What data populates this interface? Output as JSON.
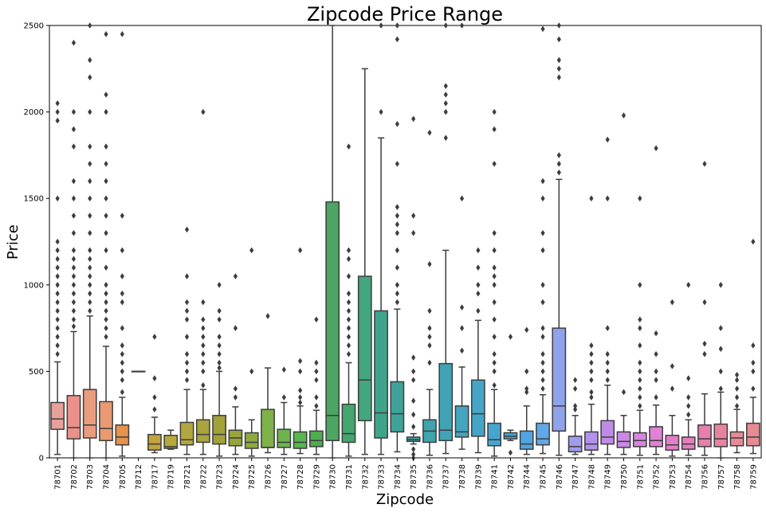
{
  "chart_data": {
    "type": "box",
    "title": "Zipcode Price Range",
    "xlabel": "Zipcode",
    "ylabel": "Price",
    "ylim": [
      0,
      2500
    ],
    "yticks": [
      0,
      500,
      1000,
      1500,
      2000,
      2500
    ],
    "grid": false,
    "legend": "none",
    "categories": [
      "78701",
      "78702",
      "78703",
      "78704",
      "78705",
      "78712",
      "78717",
      "78719",
      "78721",
      "78722",
      "78723",
      "78724",
      "78725",
      "78726",
      "78727",
      "78728",
      "78729",
      "78730",
      "78731",
      "78732",
      "78733",
      "78734",
      "78735",
      "78736",
      "78737",
      "78738",
      "78739",
      "78741",
      "78742",
      "78744",
      "78745",
      "78746",
      "78747",
      "78748",
      "78749",
      "78750",
      "78751",
      "78752",
      "78753",
      "78754",
      "78756",
      "78757",
      "78758",
      "78759"
    ],
    "colors": [
      "#e8a09a",
      "#eb908a",
      "#e99c7e",
      "#e99a72",
      "#e5924a",
      "#c9a22c",
      "#c2a33c",
      "#b9a83c",
      "#b3a63f",
      "#a9a43b",
      "#a2a23b",
      "#98a53b",
      "#8faa41",
      "#7fb14a",
      "#6db44d",
      "#58b64f",
      "#4cae4e",
      "#4ca562",
      "#45a56e",
      "#44a67e",
      "#3fa48c",
      "#3fa299",
      "#3ea4a5",
      "#3fa4ae",
      "#40a4b6",
      "#43a5be",
      "#44a5c6",
      "#46a5d0",
      "#4aa3d9",
      "#52a4e3",
      "#60a8e8",
      "#8fa3ea",
      "#a19cec",
      "#b393ec",
      "#c28ae8",
      "#cd88e6",
      "#d785e0",
      "#e080d6",
      "#e47dc9",
      "#e67ebd",
      "#e57fae",
      "#e8839f",
      "#e78c96",
      "#e68b91"
    ],
    "boxes": [
      {
        "q1": 165,
        "median": 225,
        "q3": 320,
        "whislo": 20,
        "whishi": 555,
        "fliers": [
          600,
          650,
          700,
          750,
          800,
          850,
          900,
          950,
          1000,
          1050,
          1100,
          1150,
          1200,
          1250,
          1500,
          1950,
          2000,
          2050
        ]
      },
      {
        "q1": 110,
        "median": 175,
        "q3": 360,
        "whislo": 0,
        "whishi": 730,
        "fliers": [
          760,
          800,
          850,
          900,
          950,
          1000,
          1050,
          1100,
          1150,
          1200,
          1300,
          1400,
          1500,
          1600,
          1800,
          1900,
          2000,
          2400
        ]
      },
      {
        "q1": 115,
        "median": 190,
        "q3": 395,
        "whislo": 0,
        "whishi": 820,
        "fliers": [
          850,
          900,
          950,
          1000,
          1050,
          1100,
          1150,
          1200,
          1300,
          1400,
          1500,
          1600,
          1700,
          1800,
          2000,
          2200,
          2300,
          2500
        ]
      },
      {
        "q1": 100,
        "median": 170,
        "q3": 325,
        "whislo": 0,
        "whishi": 645,
        "fliers": [
          700,
          750,
          800,
          850,
          900,
          950,
          1000,
          1100,
          1200,
          1300,
          1400,
          1500,
          1600,
          1700,
          1800,
          2000,
          2100,
          2450
        ]
      },
      {
        "q1": 75,
        "median": 120,
        "q3": 190,
        "whislo": 10,
        "whishi": 350,
        "fliers": [
          380,
          450,
          500,
          550,
          600,
          650,
          750,
          900,
          950,
          1050,
          1200,
          1400,
          2450
        ]
      },
      {
        "q1": 500,
        "median": 500,
        "q3": 500,
        "whislo": 500,
        "whishi": 500,
        "fliers": []
      },
      {
        "q1": 45,
        "median": 80,
        "q3": 135,
        "whislo": 30,
        "whishi": 235,
        "fliers": [
          280,
          350,
          460,
          700
        ]
      },
      {
        "q1": 55,
        "median": 65,
        "q3": 130,
        "whislo": 50,
        "whishi": 160,
        "fliers": []
      },
      {
        "q1": 75,
        "median": 105,
        "q3": 205,
        "whislo": 20,
        "whishi": 395,
        "fliers": [
          450,
          500,
          550,
          600,
          700,
          800,
          850,
          900,
          1050,
          1320
        ]
      },
      {
        "q1": 90,
        "median": 135,
        "q3": 220,
        "whislo": 20,
        "whishi": 395,
        "fliers": [
          420,
          500,
          550,
          600,
          650,
          700,
          750,
          800,
          900,
          2000
        ]
      },
      {
        "q1": 80,
        "median": 135,
        "q3": 245,
        "whislo": 10,
        "whishi": 500,
        "fliers": [
          520,
          550,
          600,
          650,
          700,
          800,
          850,
          1000
        ]
      },
      {
        "q1": 70,
        "median": 115,
        "q3": 160,
        "whislo": 20,
        "whishi": 295,
        "fliers": [
          350,
          400,
          750,
          1050
        ]
      },
      {
        "q1": 55,
        "median": 90,
        "q3": 145,
        "whislo": 10,
        "whishi": 220,
        "fliers": [
          500,
          1200
        ]
      },
      {
        "q1": 60,
        "median": 60,
        "q3": 280,
        "whislo": 30,
        "whishi": 520,
        "fliers": [
          820
        ]
      },
      {
        "q1": 60,
        "median": 90,
        "q3": 165,
        "whislo": 20,
        "whishi": 320,
        "fliers": [
          350,
          510
        ]
      },
      {
        "q1": 55,
        "median": 90,
        "q3": 150,
        "whislo": 25,
        "whishi": 300,
        "fliers": [
          320,
          350,
          390,
          500,
          560,
          1200
        ]
      },
      {
        "q1": 65,
        "median": 100,
        "q3": 155,
        "whislo": 20,
        "whishi": 275,
        "fliers": [
          300,
          350,
          450,
          500,
          550,
          800
        ]
      },
      {
        "q1": 100,
        "median": 245,
        "q3": 1480,
        "whislo": 0,
        "whishi": 2500,
        "fliers": []
      },
      {
        "q1": 90,
        "median": 140,
        "q3": 310,
        "whislo": 10,
        "whishi": 550,
        "fliers": [
          600,
          650,
          700,
          750,
          800,
          850,
          900,
          950,
          1050,
          1150,
          1200,
          1800
        ]
      },
      {
        "q1": 215,
        "median": 450,
        "q3": 1050,
        "whislo": 20,
        "whishi": 2250,
        "fliers": []
      },
      {
        "q1": 115,
        "median": 260,
        "q3": 850,
        "whislo": 20,
        "whishi": 1850,
        "fliers": [
          2000,
          2500
        ]
      },
      {
        "q1": 150,
        "median": 255,
        "q3": 440,
        "whislo": 35,
        "whishi": 860,
        "fliers": [
          900,
          950,
          1000,
          1100,
          1200,
          1300,
          1350,
          1400,
          1450,
          1700,
          1930,
          2420,
          2500
        ]
      },
      {
        "q1": 95,
        "median": 105,
        "q3": 120,
        "whislo": 80,
        "whishi": 140,
        "fliers": [
          0,
          20,
          50,
          180,
          250,
          330,
          450,
          500,
          580,
          1300,
          1400,
          1960
        ]
      },
      {
        "q1": 90,
        "median": 155,
        "q3": 220,
        "whislo": 15,
        "whishi": 395,
        "fliers": [
          550,
          650,
          700,
          750,
          850,
          1120,
          1880
        ]
      },
      {
        "q1": 100,
        "median": 160,
        "q3": 545,
        "whislo": 25,
        "whishi": 1200,
        "fliers": [
          1850,
          2000,
          2050,
          2100,
          2150,
          2500
        ]
      },
      {
        "q1": 120,
        "median": 150,
        "q3": 300,
        "whislo": 50,
        "whishi": 525,
        "fliers": [
          620,
          750,
          870,
          1500,
          2500
        ]
      },
      {
        "q1": 125,
        "median": 255,
        "q3": 450,
        "whislo": 30,
        "whishi": 795,
        "fliers": [
          850,
          950,
          1000,
          1100,
          1200
        ]
      },
      {
        "q1": 70,
        "median": 105,
        "q3": 200,
        "whislo": 10,
        "whishi": 395,
        "fliers": [
          420,
          500,
          550,
          600,
          700,
          800,
          900,
          1000,
          1050,
          1100,
          1200,
          1300,
          1700,
          1900,
          2000
        ]
      },
      {
        "q1": 110,
        "median": 125,
        "q3": 145,
        "whislo": 100,
        "whishi": 160,
        "fliers": [
          30,
          700
        ]
      },
      {
        "q1": 50,
        "median": 80,
        "q3": 155,
        "whislo": 20,
        "whishi": 300,
        "fliers": [
          380,
          400,
          500,
          740
        ]
      },
      {
        "q1": 75,
        "median": 110,
        "q3": 200,
        "whislo": 25,
        "whishi": 365,
        "fliers": [
          400,
          450,
          500,
          550,
          600,
          700,
          750,
          900,
          1000,
          1200,
          1300,
          1500,
          1600,
          2480
        ]
      },
      {
        "q1": 155,
        "median": 300,
        "q3": 750,
        "whislo": 15,
        "whishi": 1610,
        "fliers": [
          1650,
          1700,
          1750,
          2200,
          2250,
          2300,
          2420,
          2500
        ]
      },
      {
        "q1": 35,
        "median": 65,
        "q3": 125,
        "whislo": 20,
        "whishi": 245,
        "fliers": [
          280,
          300,
          400,
          450
        ]
      },
      {
        "q1": 45,
        "median": 80,
        "q3": 150,
        "whislo": 20,
        "whishi": 310,
        "fliers": [
          350,
          380,
          450,
          500,
          550,
          600,
          650,
          1500
        ]
      },
      {
        "q1": 80,
        "median": 120,
        "q3": 215,
        "whislo": 20,
        "whishi": 420,
        "fliers": [
          450,
          500,
          550,
          600,
          750,
          1500,
          1840
        ]
      },
      {
        "q1": 60,
        "median": 95,
        "q3": 150,
        "whislo": 20,
        "whishi": 245,
        "fliers": [
          380,
          1980
        ]
      },
      {
        "q1": 65,
        "median": 100,
        "q3": 145,
        "whislo": 15,
        "whishi": 275,
        "fliers": [
          300,
          350,
          400,
          450,
          500,
          550,
          650,
          750,
          800,
          1000,
          1500
        ]
      },
      {
        "q1": 65,
        "median": 100,
        "q3": 180,
        "whislo": 20,
        "whishi": 305,
        "fliers": [
          350,
          450,
          500,
          600,
          720,
          1790
        ]
      },
      {
        "q1": 45,
        "median": 75,
        "q3": 130,
        "whislo": 10,
        "whishi": 245,
        "fliers": [
          400,
          530,
          900
        ]
      },
      {
        "q1": 50,
        "median": 80,
        "q3": 120,
        "whislo": 15,
        "whishi": 220,
        "fliers": [
          250,
          300,
          350,
          460,
          1000
        ]
      },
      {
        "q1": 65,
        "median": 110,
        "q3": 190,
        "whislo": 15,
        "whishi": 370,
        "fliers": [
          600,
          660,
          900,
          1700
        ]
      },
      {
        "q1": 65,
        "median": 110,
        "q3": 195,
        "whislo": 0,
        "whishi": 380,
        "fliers": [
          400,
          500,
          630,
          750,
          1000
        ]
      },
      {
        "q1": 70,
        "median": 115,
        "q3": 150,
        "whislo": 30,
        "whishi": 280,
        "fliers": [
          300,
          350,
          400,
          450,
          480
        ]
      },
      {
        "q1": 70,
        "median": 120,
        "q3": 200,
        "whislo": 25,
        "whishi": 350,
        "fliers": [
          400,
          500,
          550,
          650,
          1250
        ]
      }
    ]
  }
}
